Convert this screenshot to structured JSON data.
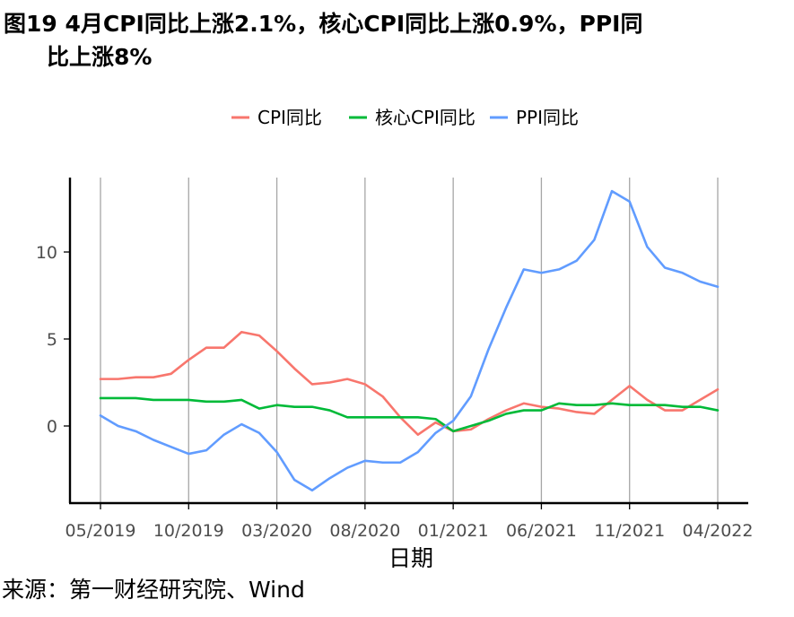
{
  "figure": {
    "title_line1": "图19 4月CPI同比上涨2.1%，核心CPI同比上涨0.9%，PPI同",
    "title_line2": "比上涨8%",
    "source": "来源：第一财经研究院、Wind"
  },
  "chart_data": {
    "type": "line",
    "xlabel": "日期",
    "ylabel": "",
    "ylim": [
      -4.5,
      14.5
    ],
    "yticks": [
      0,
      5,
      10
    ],
    "x_tick_labels": [
      "05/2019",
      "10/2019",
      "03/2020",
      "08/2020",
      "01/2021",
      "06/2021",
      "11/2021",
      "04/2022"
    ],
    "x": [
      "05/2019",
      "06/2019",
      "07/2019",
      "08/2019",
      "09/2019",
      "10/2019",
      "11/2019",
      "12/2019",
      "01/2020",
      "02/2020",
      "03/2020",
      "04/2020",
      "05/2020",
      "06/2020",
      "07/2020",
      "08/2020",
      "09/2020",
      "10/2020",
      "11/2020",
      "12/2020",
      "01/2021",
      "02/2021",
      "03/2021",
      "04/2021",
      "05/2021",
      "06/2021",
      "07/2021",
      "08/2021",
      "09/2021",
      "10/2021",
      "11/2021",
      "12/2021",
      "01/2022",
      "02/2022",
      "03/2022",
      "04/2022"
    ],
    "grid": "vertical lines at labelled x ticks",
    "legend": "top",
    "series": [
      {
        "name": "CPI同比",
        "color": "#F8766D",
        "values": [
          2.7,
          2.7,
          2.8,
          2.8,
          3.0,
          3.8,
          4.5,
          4.5,
          5.4,
          5.2,
          4.3,
          3.3,
          2.4,
          2.5,
          2.7,
          2.4,
          1.7,
          0.5,
          -0.5,
          0.2,
          -0.3,
          -0.2,
          0.4,
          0.9,
          1.3,
          1.1,
          1.0,
          0.8,
          0.7,
          1.5,
          2.3,
          1.5,
          0.9,
          0.9,
          1.5,
          2.1
        ]
      },
      {
        "name": "核心CPI同比",
        "color": "#00BA38",
        "values": [
          1.6,
          1.6,
          1.6,
          1.5,
          1.5,
          1.5,
          1.4,
          1.4,
          1.5,
          1.0,
          1.2,
          1.1,
          1.1,
          0.9,
          0.5,
          0.5,
          0.5,
          0.5,
          0.5,
          0.4,
          -0.3,
          0.0,
          0.3,
          0.7,
          0.9,
          0.9,
          1.3,
          1.2,
          1.2,
          1.3,
          1.2,
          1.2,
          1.2,
          1.1,
          1.1,
          0.9
        ]
      },
      {
        "name": "PPI同比",
        "color": "#619CFF",
        "values": [
          0.6,
          0.0,
          -0.3,
          -0.8,
          -1.2,
          -1.6,
          -1.4,
          -0.5,
          0.1,
          -0.4,
          -1.5,
          -3.1,
          -3.7,
          -3.0,
          -2.4,
          -2.0,
          -2.1,
          -2.1,
          -1.5,
          -0.4,
          0.3,
          1.7,
          4.4,
          6.8,
          9.0,
          8.8,
          9.0,
          9.5,
          10.7,
          13.5,
          12.9,
          10.3,
          9.1,
          8.8,
          8.3,
          8.0
        ]
      }
    ]
  }
}
